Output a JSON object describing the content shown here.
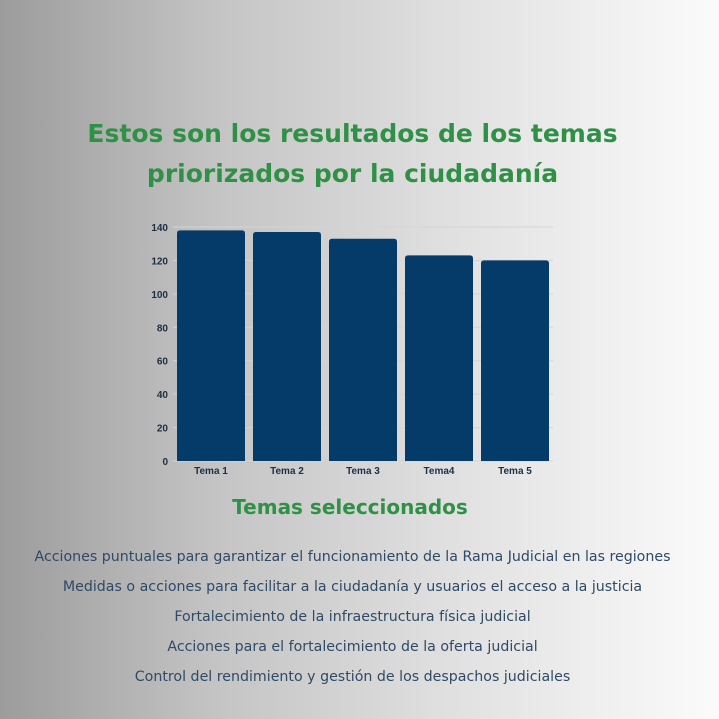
{
  "title_lines": [
    "Estos son los resultados de los temas",
    "priorizados por la ciudadanía"
  ],
  "colors": {
    "title_green": "#2f9145",
    "bar": "#053b69",
    "text_blue": "#2e4a66"
  },
  "chart_data": {
    "type": "bar",
    "categories": [
      "Tema 1",
      "Tema 2",
      "Tema 3",
      "Tema4",
      "Tema 5"
    ],
    "values": [
      138,
      137,
      133,
      123,
      120
    ],
    "yticks": [
      0,
      20,
      40,
      60,
      80,
      100,
      120,
      140
    ],
    "ylim": [
      0,
      140
    ],
    "grid": true,
    "legend": "none"
  },
  "subtitle": "Temas seleccionados",
  "topics": [
    "Acciones puntuales para garantizar el funcionamiento de la Rama Judicial en las regiones",
    "Medidas o acciones para facilitar a la ciudadanía y usuarios el acceso a la justicia",
    "Fortalecimiento de la infraestructura física judicial",
    "Acciones para el fortalecimiento de la oferta judicial",
    "Control del rendimiento y gestión de los despachos judiciales"
  ]
}
